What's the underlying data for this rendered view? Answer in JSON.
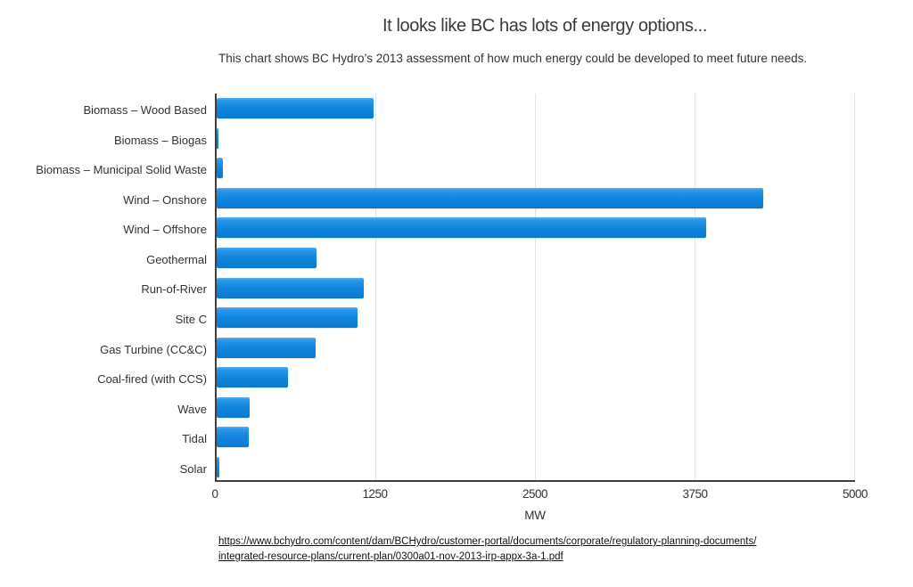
{
  "page": {
    "title": "It looks like BC has lots of energy options...",
    "subtitle": "This chart shows BC Hydro’s 2013 assessment of how much energy could be developed to meet future needs."
  },
  "chart_data": {
    "type": "bar",
    "orientation": "horizontal",
    "title": "It looks like BC has lots of energy options...",
    "subtitle": "This chart shows BC Hydro’s 2013 assessment of how much energy could be developed to meet future needs.",
    "categories": [
      "Biomass – Wood Based",
      "Biomass – Biogas",
      "Biomass – Municipal Solid Waste",
      "Wind – Onshore",
      "Wind – Offshore",
      "Geothermal",
      "Run-of-River",
      "Site C",
      "Gas Turbine (CC&C)",
      "Coal-fired (with CCS)",
      "Wave",
      "Tidal",
      "Solar"
    ],
    "values": [
      1225,
      15,
      50,
      4270,
      3820,
      780,
      1150,
      1100,
      775,
      560,
      260,
      250,
      20
    ],
    "xlabel": "MW",
    "ylabel": "",
    "xlim": [
      0,
      5000
    ],
    "xticks": [
      0,
      1250,
      2500,
      3750,
      5000
    ],
    "grid": "vertical-only",
    "legend": "none",
    "bar_color": "#1186df",
    "bar_gradient_top": "#5cb0f1",
    "bar_gradient_bottom": "#0c77cc",
    "axis_color": "#3f3f3f",
    "gridline_color": "#e4e4e4"
  },
  "footer": {
    "link_line1": "https://www.bchydro.com/content/dam/BCHydro/customer-portal/documents/corporate/regulatory-planning-documents/",
    "link_line2": "integrated-resource-plans/current-plan/0300a01-nov-2013-irp-appx-3a-1.pdf"
  }
}
